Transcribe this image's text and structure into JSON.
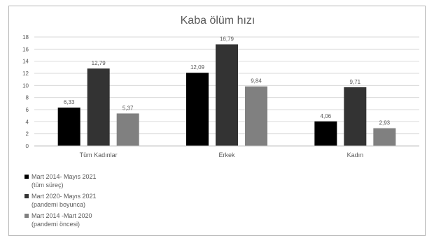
{
  "chart_data": {
    "type": "bar",
    "title": "Kaba ölüm hızı",
    "categories": [
      "Tüm Kadınlar",
      "Erkek",
      "Kadın"
    ],
    "ylim": [
      0,
      18
    ],
    "yticks": [
      0,
      2,
      4,
      6,
      8,
      10,
      12,
      14,
      16,
      18
    ],
    "grid": true,
    "legend_position": "bottom-left",
    "series": [
      {
        "name": "Mart 2014- Mayıs 2021\n(tüm süreç)",
        "color": "#000000",
        "values": [
          6.33,
          12.09,
          4.06
        ],
        "labels": [
          "6,33",
          "12,09",
          "4,06"
        ]
      },
      {
        "name": "Mart 2020- Mayıs 2021\n(pandemi boyunca)",
        "color": "#333333",
        "values": [
          12.79,
          16.79,
          9.71
        ],
        "labels": [
          "12,79",
          "16,79",
          "9,71"
        ]
      },
      {
        "name": "Mart 2014 -Mart 2020\n(pandemi öncesi)",
        "color": "#808080",
        "values": [
          5.37,
          9.84,
          2.93
        ],
        "labels": [
          "5,37",
          "9,84",
          "2,93"
        ]
      }
    ]
  }
}
